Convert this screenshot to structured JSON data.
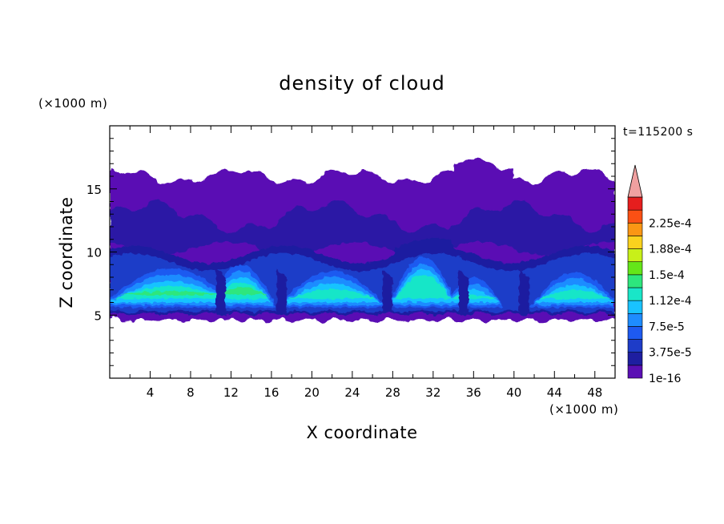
{
  "chart_data": {
    "type": "heatmap",
    "title": "density of cloud",
    "xlabel": "X coordinate",
    "ylabel": "Z coordinate",
    "x_unit": "(×1000 m)",
    "y_unit": "(×1000 m)",
    "time_label": "t=115200 s",
    "xlim": [
      0,
      50
    ],
    "ylim": [
      0,
      20
    ],
    "x_ticks": [
      4,
      8,
      12,
      16,
      20,
      24,
      28,
      32,
      36,
      40,
      44,
      48
    ],
    "y_ticks": [
      5,
      10,
      15
    ],
    "colorbar": {
      "levels": [
        1e-16,
        1.875e-05,
        3.75e-05,
        5.625e-05,
        7.5e-05,
        9.375e-05,
        0.0001125,
        0.00013125,
        0.00015,
        0.00016875,
        0.0001875,
        0.00020625,
        0.000225,
        0.00024375
      ],
      "labels": [
        "1e-16",
        "3.75e-5",
        "7.5e-5",
        "1.12e-4",
        "1.5e-4",
        "1.88e-4",
        "2.25e-4"
      ],
      "colors": [
        "#5a0fb4",
        "#1e1ea0",
        "#1e3cc8",
        "#1e5af0",
        "#1e8cff",
        "#19c3ff",
        "#19e6c8",
        "#2de67d",
        "#64e619",
        "#c8f019",
        "#fad21e",
        "#fa9614",
        "#fa5014",
        "#e61e1e"
      ],
      "overflow_color": "#f0a0a0"
    },
    "cloud_layer": {
      "base_z": 5,
      "top_z_approx": 16.5,
      "max_density_z": [
        6.5,
        8
      ],
      "cell_centers_x": [
        6,
        13,
        22,
        31,
        36,
        46
      ]
    }
  }
}
